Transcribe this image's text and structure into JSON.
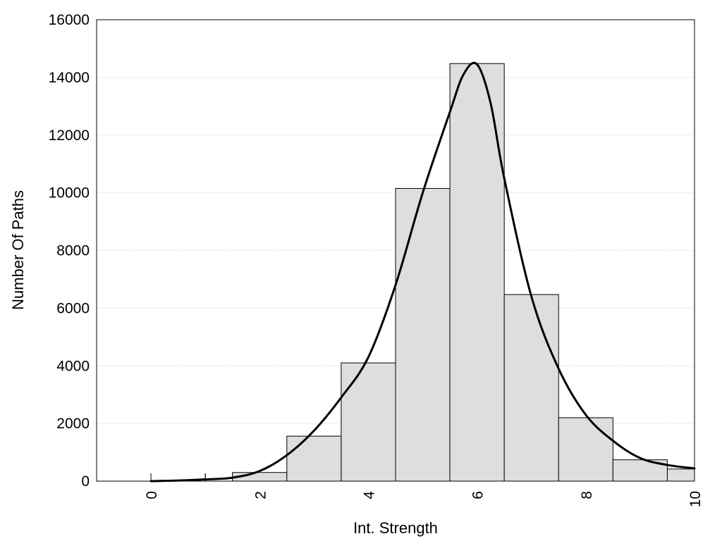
{
  "chart_data": {
    "type": "bar",
    "xlabel": "Int. Strength",
    "ylabel": "Number Of Paths",
    "xlim": [
      -1,
      10
    ],
    "ylim": [
      0,
      16000
    ],
    "x_ticks": [
      0,
      2,
      4,
      6,
      8,
      10
    ],
    "y_ticks": [
      0,
      2000,
      4000,
      6000,
      8000,
      10000,
      12000,
      14000,
      16000
    ],
    "grid": "horizontal dotted",
    "bar_color": "#dedede",
    "bins": [
      {
        "x0": 0,
        "x1": 1,
        "value": 0
      },
      {
        "x0": 1,
        "x1": 1.5,
        "value": 0
      },
      {
        "x0": 1.5,
        "x1": 2.5,
        "value": 300
      },
      {
        "x0": 2.5,
        "x1": 3.5,
        "value": 1560
      },
      {
        "x0": 3.5,
        "x1": 4.5,
        "value": 4100
      },
      {
        "x0": 4.5,
        "x1": 5.5,
        "value": 10150
      },
      {
        "x0": 5.5,
        "x1": 6.5,
        "value": 14480
      },
      {
        "x0": 6.5,
        "x1": 7.5,
        "value": 6470
      },
      {
        "x0": 7.5,
        "x1": 8.5,
        "value": 2200
      },
      {
        "x0": 8.5,
        "x1": 9.5,
        "value": 740
      },
      {
        "x0": 9.5,
        "x1": 10,
        "value": 420
      }
    ],
    "density_curve": {
      "x": [
        0,
        0.5,
        1,
        1.5,
        2,
        2.5,
        3,
        3.5,
        4,
        4.5,
        5,
        5.5,
        5.75,
        6,
        6.25,
        6.5,
        7,
        7.5,
        8,
        8.5,
        9,
        9.5,
        10
      ],
      "y": [
        0,
        20,
        60,
        120,
        350,
        900,
        1750,
        2900,
        4300,
        6800,
        10000,
        12800,
        14100,
        14450,
        13100,
        10500,
        6400,
        3900,
        2300,
        1400,
        800,
        560,
        440
      ]
    }
  }
}
